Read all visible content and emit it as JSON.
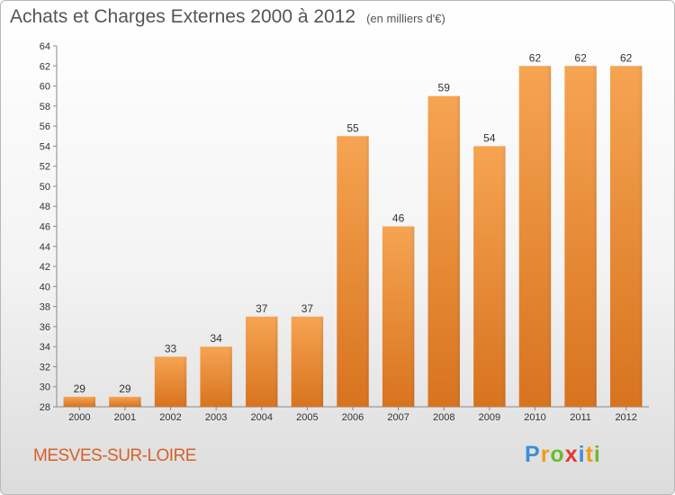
{
  "title": "Achats et Charges Externes 2000 à 2012",
  "unit": "(en milliers d'€)",
  "commune": "MESVES-SUR-LOIRE",
  "logo": {
    "letters": [
      "P",
      "r",
      "o",
      "x",
      "i",
      "t",
      "i"
    ],
    "colors": [
      "#3a8fd6",
      "#f29a1a",
      "#6cbb2c",
      "#e33a2d",
      "#3a8fd6",
      "#f29a1a",
      "#6cbb2c"
    ]
  },
  "chart_data": {
    "type": "bar",
    "title": "Achats et Charges Externes 2000 à 2012",
    "xlabel": "",
    "ylabel": "(en milliers d'€)",
    "categories": [
      "2000",
      "2001",
      "2002",
      "2003",
      "2004",
      "2005",
      "2006",
      "2007",
      "2008",
      "2009",
      "2010",
      "2011",
      "2012"
    ],
    "values": [
      29,
      29,
      33,
      34,
      37,
      37,
      55,
      46,
      59,
      54,
      62,
      62,
      62
    ],
    "ylim": [
      28,
      64
    ],
    "yticks": [
      28,
      30,
      32,
      34,
      36,
      38,
      40,
      42,
      44,
      46,
      48,
      50,
      52,
      54,
      56,
      58,
      60,
      62,
      64
    ],
    "grid": false,
    "bar_color": "#f0943f"
  }
}
